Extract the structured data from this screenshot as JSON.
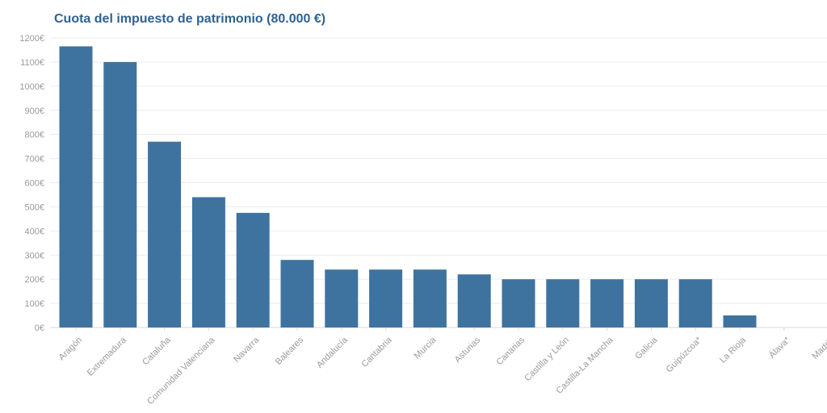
{
  "chart_data": {
    "type": "bar",
    "title": "Cuota del impuesto de patrimonio (80.000 €)",
    "categories": [
      "Aragón",
      "Extremadura",
      "Cataluña",
      "Comunidad Valenciana",
      "Navarra",
      "Baleares",
      "Andalucía",
      "Cantabria",
      "Murcia",
      "Asturias",
      "Canarias",
      "Castilla y León",
      "Castilla-La Mancha",
      "Galicia",
      "Guipúzcoa*",
      "La Rioja",
      "Álava*",
      "Madrid"
    ],
    "values": [
      1165,
      1100,
      770,
      540,
      475,
      280,
      240,
      240,
      240,
      220,
      200,
      200,
      200,
      200,
      200,
      50,
      0,
      0
    ],
    "ylim": [
      0,
      1200
    ],
    "yticks": [
      "0€",
      "100€",
      "200€",
      "300€",
      "400€",
      "500€",
      "600€",
      "700€",
      "800€",
      "900€",
      "1000€",
      "1100€",
      "1200€"
    ],
    "xlabel": "",
    "ylabel": "",
    "grid": true,
    "bar_color": "#3f739f"
  }
}
